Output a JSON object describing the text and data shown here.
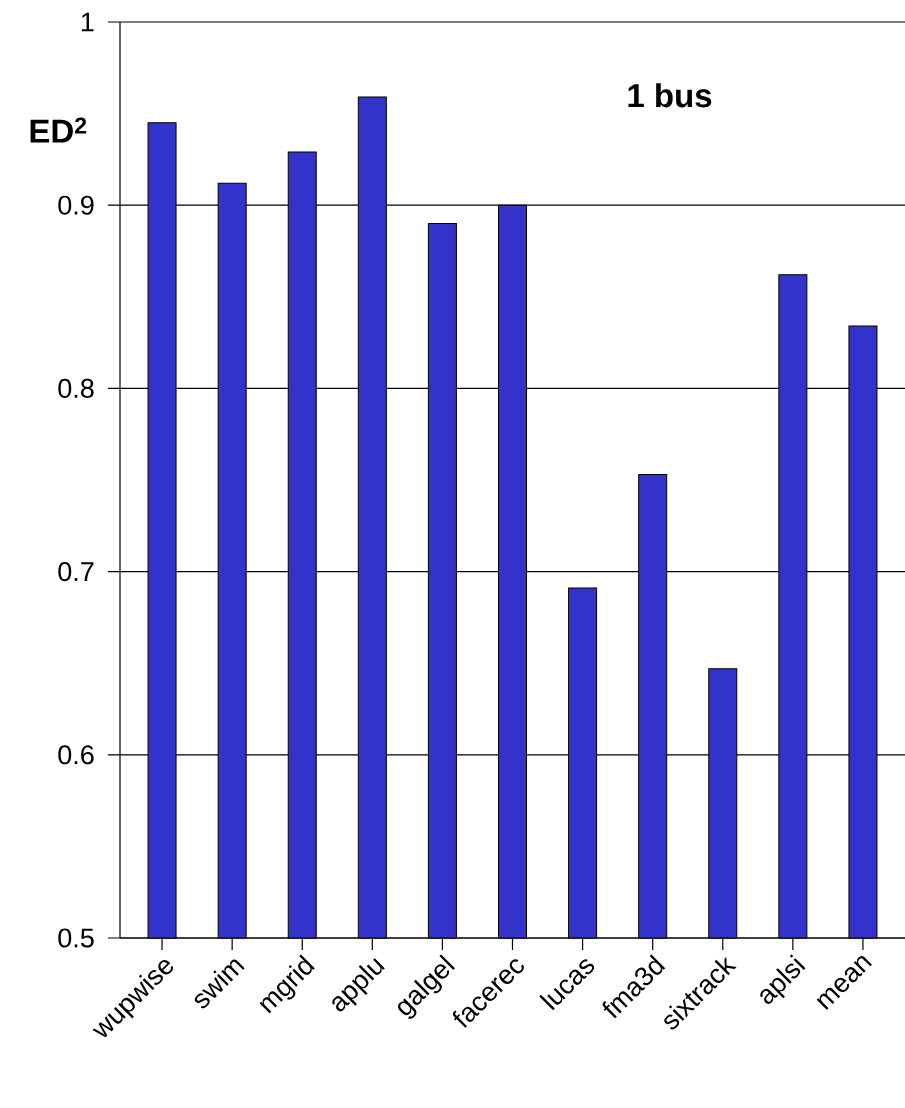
{
  "chart_data": {
    "type": "bar",
    "title": "1 bus",
    "ylabel": "ED$^{2}$",
    "categories": [
      "wupwise",
      "swim",
      "mgrid",
      "applu",
      "galgel",
      "facerec",
      "lucas",
      "fma3d",
      "sixtrack",
      "aplsi",
      "mean"
    ],
    "values": [
      0.945,
      0.912,
      0.929,
      0.959,
      0.89,
      0.9,
      0.691,
      0.753,
      0.647,
      0.862,
      0.834
    ],
    "color": "#3333cc",
    "ylim": [
      0.5,
      1
    ],
    "yticks": [
      0.5,
      0.6,
      0.7,
      0.8,
      0.9,
      1
    ],
    "grid": "y"
  }
}
